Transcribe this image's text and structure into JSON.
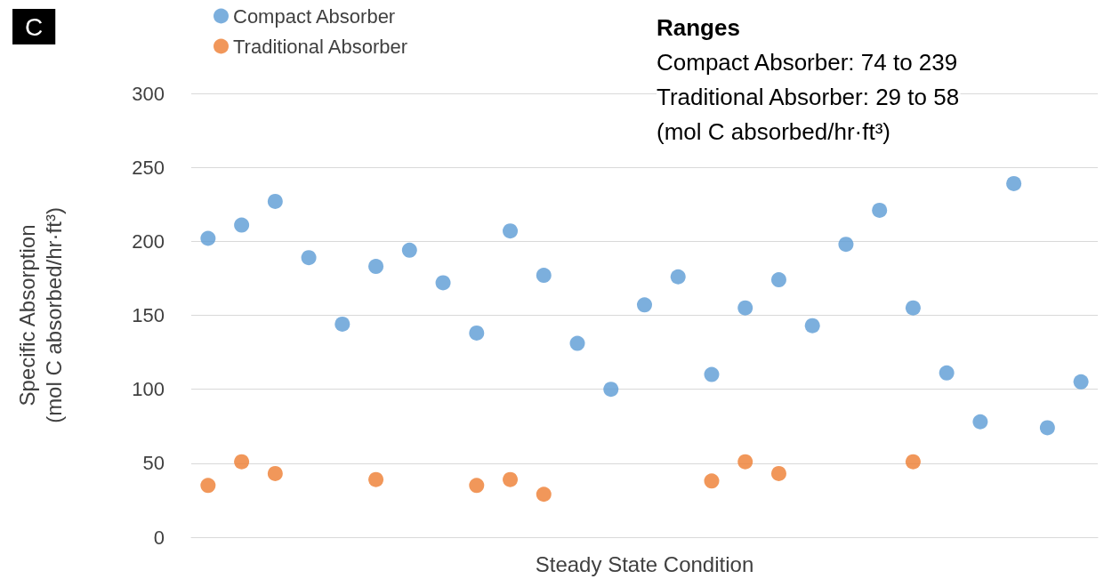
{
  "chart_data": {
    "type": "scatter",
    "xlabel": "Steady State Condition",
    "ylabel": "Specific Absorption\n(mol C absorbed/hr·ft³)",
    "categories": [
      null,
      null,
      null,
      null,
      null,
      null,
      null,
      null,
      null,
      null,
      null,
      null,
      null,
      null,
      null,
      null,
      null,
      null,
      null,
      null,
      null,
      null,
      null,
      null,
      null,
      null,
      null
    ],
    "series": [
      {
        "name": "Compact Absorber",
        "color": "#5b9bd5",
        "values": [
          202,
          211,
          227,
          189,
          144,
          183,
          194,
          172,
          138,
          207,
          177,
          131,
          100,
          157,
          176,
          110,
          155,
          174,
          143,
          198,
          221,
          155,
          111,
          78,
          239,
          74,
          105
        ]
      },
      {
        "name": "Traditional Absorber",
        "color": "#ed7d31",
        "values": [
          35,
          51,
          43,
          null,
          null,
          39,
          null,
          null,
          35,
          39,
          29,
          null,
          null,
          null,
          null,
          38,
          51,
          43,
          null,
          null,
          null,
          51,
          null,
          null,
          null,
          null,
          null
        ]
      }
    ],
    "ylim": [
      0,
      300
    ],
    "yticks": [
      0,
      50,
      100,
      150,
      200,
      250,
      300
    ],
    "grid": "y",
    "legend": "top left",
    "marker": "circle",
    "annotations": [
      "C",
      "Ranges",
      "Compact Absorber: 74 to 239",
      "Traditional Absorber: 29 to 58",
      "(mol C absorbed/hr·ft³)"
    ]
  }
}
